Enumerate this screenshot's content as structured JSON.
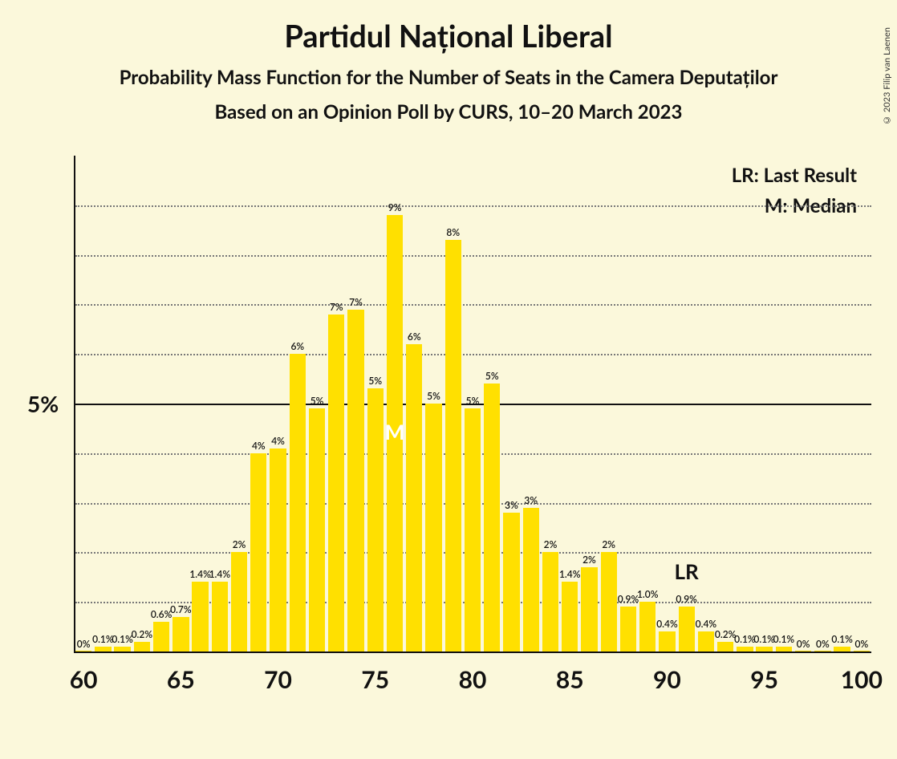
{
  "title": "Partidul Național Liberal",
  "subtitle": "Probability Mass Function for the Number of Seats in the Camera Deputaților",
  "subtitle2": "Based on an Opinion Poll by CURS, 10–20 March 2023",
  "copyright": "© 2023 Filip van Laenen",
  "legend": {
    "lr": "LR: Last Result",
    "m": "M: Median"
  },
  "chart": {
    "type": "bar",
    "background_color": "#fbf8db",
    "bar_color": "#ffe000",
    "grid_color": "#777",
    "axis_color": "#111",
    "text_color": "#111",
    "median_marker": {
      "text": "M",
      "seat": 76,
      "color": "#ffffff"
    },
    "lr_marker": {
      "text": "LR",
      "seat": 91
    },
    "x_range": [
      60,
      100
    ],
    "x_ticks": [
      60,
      65,
      70,
      75,
      80,
      85,
      90,
      95,
      100
    ],
    "y_max_percent": 10,
    "y_gridlines": [
      1,
      2,
      3,
      4,
      5,
      6,
      7,
      8,
      9
    ],
    "y_tick_labels": [
      {
        "value": 5,
        "text": "5%"
      }
    ],
    "bars": [
      {
        "seat": 60,
        "value": 0.0,
        "label": "0%"
      },
      {
        "seat": 61,
        "value": 0.1,
        "label": "0.1%"
      },
      {
        "seat": 62,
        "value": 0.1,
        "label": "0.1%"
      },
      {
        "seat": 63,
        "value": 0.2,
        "label": "0.2%"
      },
      {
        "seat": 64,
        "value": 0.6,
        "label": "0.6%"
      },
      {
        "seat": 65,
        "value": 0.7,
        "label": "0.7%"
      },
      {
        "seat": 66,
        "value": 1.4,
        "label": "1.4%"
      },
      {
        "seat": 67,
        "value": 1.4,
        "label": "1.4%"
      },
      {
        "seat": 68,
        "value": 2.0,
        "label": "2%"
      },
      {
        "seat": 69,
        "value": 4.0,
        "label": "4%"
      },
      {
        "seat": 70,
        "value": 4.1,
        "label": "4%"
      },
      {
        "seat": 71,
        "value": 6.0,
        "label": "6%"
      },
      {
        "seat": 72,
        "value": 4.9,
        "label": "5%"
      },
      {
        "seat": 73,
        "value": 6.8,
        "label": "7%"
      },
      {
        "seat": 74,
        "value": 6.9,
        "label": "7%"
      },
      {
        "seat": 75,
        "value": 5.3,
        "label": "5%"
      },
      {
        "seat": 76,
        "value": 8.8,
        "label": "9%"
      },
      {
        "seat": 77,
        "value": 6.2,
        "label": "6%"
      },
      {
        "seat": 78,
        "value": 5.0,
        "label": "5%"
      },
      {
        "seat": 79,
        "value": 8.3,
        "label": "8%"
      },
      {
        "seat": 80,
        "value": 4.9,
        "label": "5%"
      },
      {
        "seat": 81,
        "value": 5.4,
        "label": "5%"
      },
      {
        "seat": 82,
        "value": 2.8,
        "label": "3%"
      },
      {
        "seat": 83,
        "value": 2.9,
        "label": "3%"
      },
      {
        "seat": 84,
        "value": 2.0,
        "label": "2%"
      },
      {
        "seat": 85,
        "value": 1.4,
        "label": "1.4%"
      },
      {
        "seat": 86,
        "value": 1.7,
        "label": "2%"
      },
      {
        "seat": 87,
        "value": 2.0,
        "label": "2%"
      },
      {
        "seat": 88,
        "value": 0.9,
        "label": "0.9%"
      },
      {
        "seat": 89,
        "value": 1.0,
        "label": "1.0%"
      },
      {
        "seat": 90,
        "value": 0.4,
        "label": "0.4%"
      },
      {
        "seat": 91,
        "value": 0.9,
        "label": "0.9%"
      },
      {
        "seat": 92,
        "value": 0.4,
        "label": "0.4%"
      },
      {
        "seat": 93,
        "value": 0.2,
        "label": "0.2%"
      },
      {
        "seat": 94,
        "value": 0.1,
        "label": "0.1%"
      },
      {
        "seat": 95,
        "value": 0.1,
        "label": "0.1%"
      },
      {
        "seat": 96,
        "value": 0.1,
        "label": "0.1%"
      },
      {
        "seat": 97,
        "value": 0.0,
        "label": "0%"
      },
      {
        "seat": 98,
        "value": 0.0,
        "label": "0%"
      },
      {
        "seat": 99,
        "value": 0.1,
        "label": "0.1%"
      },
      {
        "seat": 100,
        "value": 0.0,
        "label": "0%"
      }
    ]
  }
}
